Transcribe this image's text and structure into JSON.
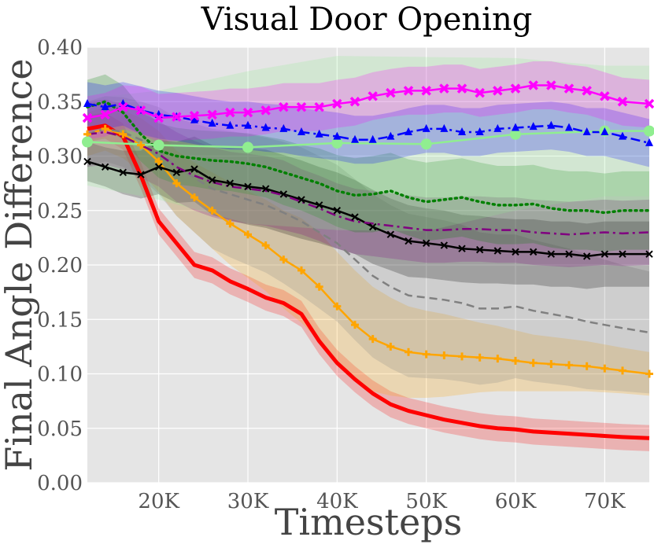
{
  "chart_data": {
    "type": "line",
    "title": "Visual Door Opening",
    "xlabel": "Timesteps",
    "ylabel": "Final Angle Difference",
    "xlim": [
      12000,
      75000
    ],
    "ylim": [
      0.0,
      0.4
    ],
    "xticks": [
      20000,
      30000,
      40000,
      50000,
      60000,
      70000
    ],
    "xtick_labels": [
      "20K",
      "30K",
      "40K",
      "50K",
      "60K",
      "70K"
    ],
    "yticks": [
      0.0,
      0.05,
      0.1,
      0.15,
      0.2,
      0.25,
      0.3,
      0.35,
      0.4
    ],
    "ytick_labels": [
      "0.00",
      "0.05",
      "0.10",
      "0.15",
      "0.20",
      "0.25",
      "0.30",
      "0.35",
      "0.40"
    ],
    "grid": true,
    "series": [
      {
        "name": "red",
        "color": "#ff0000",
        "style": "solid",
        "marker": "none",
        "x": [
          12000,
          14000,
          16000,
          18000,
          20000,
          22000,
          24000,
          26000,
          28000,
          30000,
          32000,
          34000,
          36000,
          38000,
          40000,
          42000,
          44000,
          46000,
          48000,
          50000,
          52000,
          54000,
          56000,
          58000,
          60000,
          62000,
          64000,
          66000,
          68000,
          70000,
          72000,
          75000
        ],
        "y": [
          0.325,
          0.328,
          0.318,
          0.282,
          0.24,
          0.22,
          0.2,
          0.195,
          0.185,
          0.178,
          0.17,
          0.165,
          0.155,
          0.13,
          0.11,
          0.095,
          0.082,
          0.072,
          0.066,
          0.062,
          0.058,
          0.055,
          0.052,
          0.05,
          0.049,
          0.047,
          0.046,
          0.045,
          0.044,
          0.043,
          0.042,
          0.041
        ],
        "band": [
          0.012,
          0.012,
          0.012,
          0.012,
          0.012,
          0.012,
          0.012,
          0.012,
          0.012,
          0.012,
          0.012,
          0.012,
          0.012,
          0.012,
          0.012,
          0.012,
          0.012,
          0.012,
          0.012,
          0.012,
          0.012,
          0.012,
          0.012,
          0.012,
          0.012,
          0.012,
          0.012,
          0.012,
          0.012,
          0.012,
          0.012,
          0.012
        ]
      },
      {
        "name": "orange",
        "color": "#ffa500",
        "style": "solid",
        "marker": "plus",
        "x": [
          12000,
          14000,
          16000,
          18000,
          20000,
          22000,
          24000,
          26000,
          28000,
          30000,
          32000,
          34000,
          36000,
          38000,
          40000,
          42000,
          44000,
          46000,
          48000,
          50000,
          52000,
          54000,
          56000,
          58000,
          60000,
          62000,
          64000,
          66000,
          68000,
          70000,
          72000,
          75000
        ],
        "y": [
          0.32,
          0.325,
          0.32,
          0.31,
          0.295,
          0.275,
          0.262,
          0.25,
          0.238,
          0.228,
          0.218,
          0.205,
          0.195,
          0.18,
          0.162,
          0.145,
          0.132,
          0.125,
          0.12,
          0.118,
          0.117,
          0.116,
          0.115,
          0.114,
          0.112,
          0.11,
          0.109,
          0.108,
          0.107,
          0.105,
          0.103,
          0.1
        ],
        "band": [
          0.02,
          0.02,
          0.022,
          0.025,
          0.028,
          0.03,
          0.032,
          0.035,
          0.038,
          0.04,
          0.042,
          0.045,
          0.048,
          0.05,
          0.05,
          0.05,
          0.048,
          0.045,
          0.042,
          0.04,
          0.038,
          0.035,
          0.032,
          0.03,
          0.028,
          0.026,
          0.025,
          0.024,
          0.023,
          0.022,
          0.021,
          0.02
        ]
      },
      {
        "name": "gray",
        "color": "#808080",
        "style": "dashed",
        "marker": "none",
        "x": [
          12000,
          14000,
          16000,
          18000,
          20000,
          22000,
          24000,
          26000,
          28000,
          30000,
          32000,
          34000,
          36000,
          38000,
          40000,
          42000,
          44000,
          46000,
          48000,
          50000,
          52000,
          54000,
          56000,
          58000,
          60000,
          62000,
          64000,
          66000,
          68000,
          70000,
          72000,
          75000
        ],
        "y": [
          0.32,
          0.325,
          0.322,
          0.315,
          0.305,
          0.29,
          0.28,
          0.27,
          0.265,
          0.26,
          0.255,
          0.248,
          0.24,
          0.23,
          0.22,
          0.205,
          0.19,
          0.18,
          0.172,
          0.17,
          0.168,
          0.165,
          0.16,
          0.16,
          0.162,
          0.158,
          0.155,
          0.152,
          0.148,
          0.145,
          0.142,
          0.138
        ],
        "band": [
          0.03,
          0.03,
          0.032,
          0.035,
          0.04,
          0.045,
          0.05,
          0.055,
          0.058,
          0.06,
          0.062,
          0.065,
          0.068,
          0.07,
          0.072,
          0.074,
          0.075,
          0.075,
          0.075,
          0.074,
          0.073,
          0.072,
          0.07,
          0.068,
          0.066,
          0.065,
          0.064,
          0.063,
          0.062,
          0.06,
          0.058,
          0.056
        ]
      },
      {
        "name": "black",
        "color": "#000000",
        "style": "solid",
        "marker": "x",
        "x": [
          12000,
          14000,
          16000,
          18000,
          20000,
          22000,
          24000,
          26000,
          28000,
          30000,
          32000,
          34000,
          36000,
          38000,
          40000,
          42000,
          44000,
          46000,
          48000,
          50000,
          52000,
          54000,
          56000,
          58000,
          60000,
          62000,
          64000,
          66000,
          68000,
          70000,
          72000,
          75000
        ],
        "y": [
          0.295,
          0.29,
          0.285,
          0.283,
          0.29,
          0.285,
          0.288,
          0.278,
          0.275,
          0.272,
          0.27,
          0.265,
          0.26,
          0.255,
          0.25,
          0.244,
          0.235,
          0.228,
          0.222,
          0.22,
          0.218,
          0.215,
          0.214,
          0.213,
          0.212,
          0.212,
          0.21,
          0.21,
          0.208,
          0.21,
          0.21,
          0.21
        ],
        "band": [
          0.018,
          0.018,
          0.02,
          0.022,
          0.025,
          0.028,
          0.03,
          0.032,
          0.034,
          0.035,
          0.036,
          0.036,
          0.036,
          0.035,
          0.035,
          0.034,
          0.034,
          0.033,
          0.033,
          0.032,
          0.032,
          0.031,
          0.031,
          0.03,
          0.03,
          0.03,
          0.03,
          0.03,
          0.03,
          0.03,
          0.03,
          0.03
        ]
      },
      {
        "name": "purple",
        "color": "#800080",
        "style": "dashdot",
        "marker": "none",
        "x": [
          12000,
          14000,
          16000,
          18000,
          20000,
          22000,
          24000,
          26000,
          28000,
          30000,
          32000,
          34000,
          36000,
          38000,
          40000,
          42000,
          44000,
          46000,
          48000,
          50000,
          52000,
          54000,
          56000,
          58000,
          60000,
          62000,
          64000,
          66000,
          68000,
          70000,
          72000,
          75000
        ],
        "y": [
          0.32,
          0.322,
          0.318,
          0.31,
          0.302,
          0.29,
          0.282,
          0.276,
          0.272,
          0.27,
          0.268,
          0.264,
          0.258,
          0.252,
          0.245,
          0.24,
          0.238,
          0.236,
          0.234,
          0.232,
          0.232,
          0.233,
          0.233,
          0.232,
          0.232,
          0.23,
          0.229,
          0.228,
          0.229,
          0.23,
          0.229,
          0.23
        ],
        "band": [
          0.03,
          0.03,
          0.03,
          0.03,
          0.03,
          0.032,
          0.032,
          0.032,
          0.032,
          0.032,
          0.032,
          0.032,
          0.03,
          0.03,
          0.03,
          0.03,
          0.03,
          0.03,
          0.03,
          0.03,
          0.03,
          0.03,
          0.03,
          0.03,
          0.03,
          0.03,
          0.03,
          0.03,
          0.03,
          0.03,
          0.03,
          0.03
        ]
      },
      {
        "name": "green",
        "color": "#008000",
        "style": "dotted",
        "marker": "none",
        "x": [
          12000,
          14000,
          16000,
          18000,
          20000,
          22000,
          24000,
          26000,
          28000,
          30000,
          32000,
          34000,
          36000,
          38000,
          40000,
          42000,
          44000,
          46000,
          48000,
          50000,
          52000,
          54000,
          56000,
          58000,
          60000,
          62000,
          64000,
          66000,
          68000,
          70000,
          72000,
          75000
        ],
        "y": [
          0.345,
          0.35,
          0.34,
          0.32,
          0.305,
          0.3,
          0.298,
          0.296,
          0.295,
          0.293,
          0.29,
          0.285,
          0.28,
          0.275,
          0.268,
          0.264,
          0.265,
          0.268,
          0.262,
          0.258,
          0.26,
          0.262,
          0.258,
          0.255,
          0.255,
          0.256,
          0.252,
          0.25,
          0.25,
          0.248,
          0.25,
          0.25
        ],
        "band": [
          0.025,
          0.025,
          0.025,
          0.025,
          0.025,
          0.026,
          0.026,
          0.027,
          0.027,
          0.028,
          0.028,
          0.03,
          0.03,
          0.032,
          0.033,
          0.034,
          0.035,
          0.035,
          0.035,
          0.036,
          0.036,
          0.036,
          0.036,
          0.036,
          0.036,
          0.036,
          0.036,
          0.036,
          0.036,
          0.036,
          0.036,
          0.036
        ]
      },
      {
        "name": "lightgreen",
        "color": "#90ee90",
        "style": "solid",
        "marker": "circle",
        "x": [
          12000,
          20000,
          30000,
          40000,
          50000,
          60000,
          70000,
          75000
        ],
        "y": [
          0.313,
          0.31,
          0.308,
          0.312,
          0.311,
          0.32,
          0.323,
          0.323
        ],
        "band": [
          0.04,
          0.05,
          0.07,
          0.08,
          0.08,
          0.07,
          0.06,
          0.06
        ]
      },
      {
        "name": "blue",
        "color": "#0000ff",
        "style": "dashdot",
        "marker": "triangle",
        "x": [
          12000,
          14000,
          16000,
          18000,
          20000,
          22000,
          24000,
          26000,
          28000,
          30000,
          32000,
          34000,
          36000,
          38000,
          40000,
          42000,
          44000,
          46000,
          48000,
          50000,
          52000,
          54000,
          56000,
          58000,
          60000,
          62000,
          64000,
          66000,
          68000,
          70000,
          72000,
          75000
        ],
        "y": [
          0.348,
          0.345,
          0.348,
          0.342,
          0.338,
          0.336,
          0.333,
          0.33,
          0.328,
          0.328,
          0.326,
          0.325,
          0.322,
          0.32,
          0.318,
          0.315,
          0.315,
          0.318,
          0.322,
          0.325,
          0.325,
          0.322,
          0.322,
          0.325,
          0.326,
          0.327,
          0.328,
          0.326,
          0.322,
          0.322,
          0.318,
          0.312
        ],
        "band": [
          0.02,
          0.02,
          0.02,
          0.022,
          0.022,
          0.022,
          0.022,
          0.022,
          0.022,
          0.022,
          0.022,
          0.022,
          0.022,
          0.022,
          0.022,
          0.022,
          0.022,
          0.022,
          0.022,
          0.022,
          0.022,
          0.022,
          0.022,
          0.022,
          0.022,
          0.022,
          0.022,
          0.022,
          0.022,
          0.022,
          0.022,
          0.022
        ]
      },
      {
        "name": "magenta",
        "color": "#ff00ff",
        "style": "solid",
        "marker": "x",
        "x": [
          12000,
          14000,
          16000,
          18000,
          20000,
          22000,
          24000,
          26000,
          28000,
          30000,
          32000,
          34000,
          36000,
          38000,
          40000,
          42000,
          44000,
          46000,
          48000,
          50000,
          52000,
          54000,
          56000,
          58000,
          60000,
          62000,
          64000,
          66000,
          68000,
          70000,
          72000,
          75000
        ],
        "y": [
          0.335,
          0.338,
          0.345,
          0.342,
          0.335,
          0.336,
          0.337,
          0.338,
          0.34,
          0.34,
          0.342,
          0.345,
          0.345,
          0.345,
          0.348,
          0.35,
          0.355,
          0.358,
          0.36,
          0.36,
          0.362,
          0.362,
          0.358,
          0.36,
          0.362,
          0.365,
          0.365,
          0.362,
          0.36,
          0.355,
          0.35,
          0.348
        ],
        "band": [
          0.02,
          0.02,
          0.02,
          0.022,
          0.022,
          0.022,
          0.022,
          0.022,
          0.022,
          0.022,
          0.022,
          0.022,
          0.022,
          0.022,
          0.022,
          0.022,
          0.022,
          0.022,
          0.022,
          0.022,
          0.022,
          0.022,
          0.022,
          0.022,
          0.022,
          0.022,
          0.022,
          0.022,
          0.022,
          0.022,
          0.022,
          0.022
        ]
      }
    ]
  }
}
